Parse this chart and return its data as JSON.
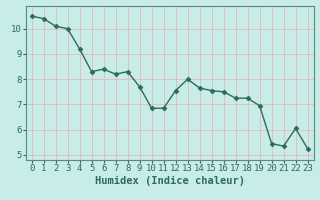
{
  "x": [
    0,
    1,
    2,
    3,
    4,
    5,
    6,
    7,
    8,
    9,
    10,
    11,
    12,
    13,
    14,
    15,
    16,
    17,
    18,
    19,
    20,
    21,
    22,
    23
  ],
  "y": [
    10.5,
    10.4,
    10.1,
    10.0,
    9.2,
    8.3,
    8.4,
    8.2,
    8.3,
    7.7,
    6.85,
    6.85,
    7.55,
    8.0,
    7.65,
    7.55,
    7.5,
    7.25,
    7.25,
    6.95,
    5.45,
    5.35,
    6.05,
    5.25
  ],
  "line_color": "#2e6b5e",
  "marker": "D",
  "markersize": 2.5,
  "linewidth": 1.0,
  "background_color": "#c8ece8",
  "grid_color": "#e8b8b8",
  "xlabel": "Humidex (Indice chaleur)",
  "xlim": [
    -0.5,
    23.5
  ],
  "ylim": [
    4.8,
    10.9
  ],
  "yticks": [
    5,
    6,
    7,
    8,
    9,
    10
  ],
  "xticks": [
    0,
    1,
    2,
    3,
    4,
    5,
    6,
    7,
    8,
    9,
    10,
    11,
    12,
    13,
    14,
    15,
    16,
    17,
    18,
    19,
    20,
    21,
    22,
    23
  ],
  "tick_color": "#2e6b5e",
  "label_color": "#2e6b5e",
  "xlabel_fontsize": 7.5,
  "tick_fontsize": 6.5,
  "spine_color": "#5a8a80"
}
